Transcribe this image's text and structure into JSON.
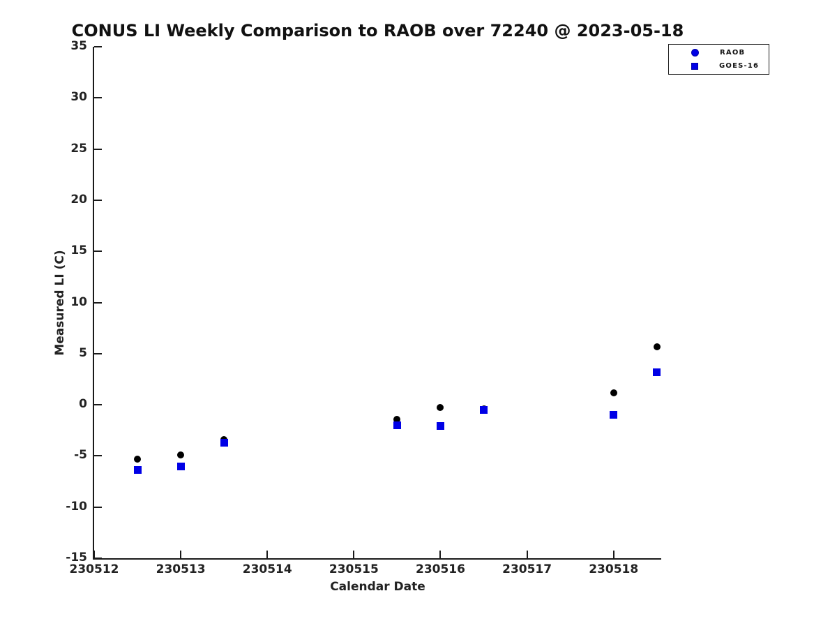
{
  "figure": {
    "background": "#ffffff",
    "accent_blue": "#0000e6",
    "marker_black": "#000000"
  },
  "chart_data": {
    "type": "scatter",
    "title": "CONUS LI Weekly Comparison to RAOB over 72240 @ 2023-05-18",
    "xlabel": "Calendar Date",
    "ylabel": "Measured LI (C)",
    "xlim": [
      230512,
      230518.55
    ],
    "ylim": [
      -15,
      35
    ],
    "x_ticks": [
      230512,
      230513,
      230514,
      230515,
      230516,
      230517,
      230518
    ],
    "y_ticks": [
      35,
      30,
      25,
      20,
      15,
      10,
      5,
      0,
      -5,
      -10,
      -15
    ],
    "grid": false,
    "legend": {
      "position": "top-right-outside",
      "entries": [
        {
          "label": "RAOB",
          "marker": "circle",
          "color": "#0000e6"
        },
        {
          "label": "GOES-16",
          "marker": "square",
          "color": "#0000e6"
        }
      ]
    },
    "series": [
      {
        "name": "RAOB",
        "marker": "circle",
        "color": "#000000",
        "marker_size": 10,
        "points": [
          [
            230512.5,
            -5.3
          ],
          [
            230513.0,
            -4.9
          ],
          [
            230513.5,
            -3.4
          ],
          [
            230515.5,
            -1.4
          ],
          [
            230516.0,
            -0.3
          ],
          [
            230516.5,
            -0.4
          ],
          [
            230518.0,
            1.2
          ],
          [
            230518.5,
            5.65
          ]
        ]
      },
      {
        "name": "GOES-16",
        "marker": "square",
        "color": "#0000e6",
        "marker_size": 11,
        "points": [
          [
            230512.5,
            -6.4
          ],
          [
            230513.0,
            -6.0
          ],
          [
            230513.5,
            -3.7
          ],
          [
            230515.5,
            -2.0
          ],
          [
            230516.0,
            -2.1
          ],
          [
            230516.5,
            -0.5
          ],
          [
            230518.0,
            -1.0
          ],
          [
            230518.5,
            3.15
          ]
        ]
      }
    ]
  }
}
